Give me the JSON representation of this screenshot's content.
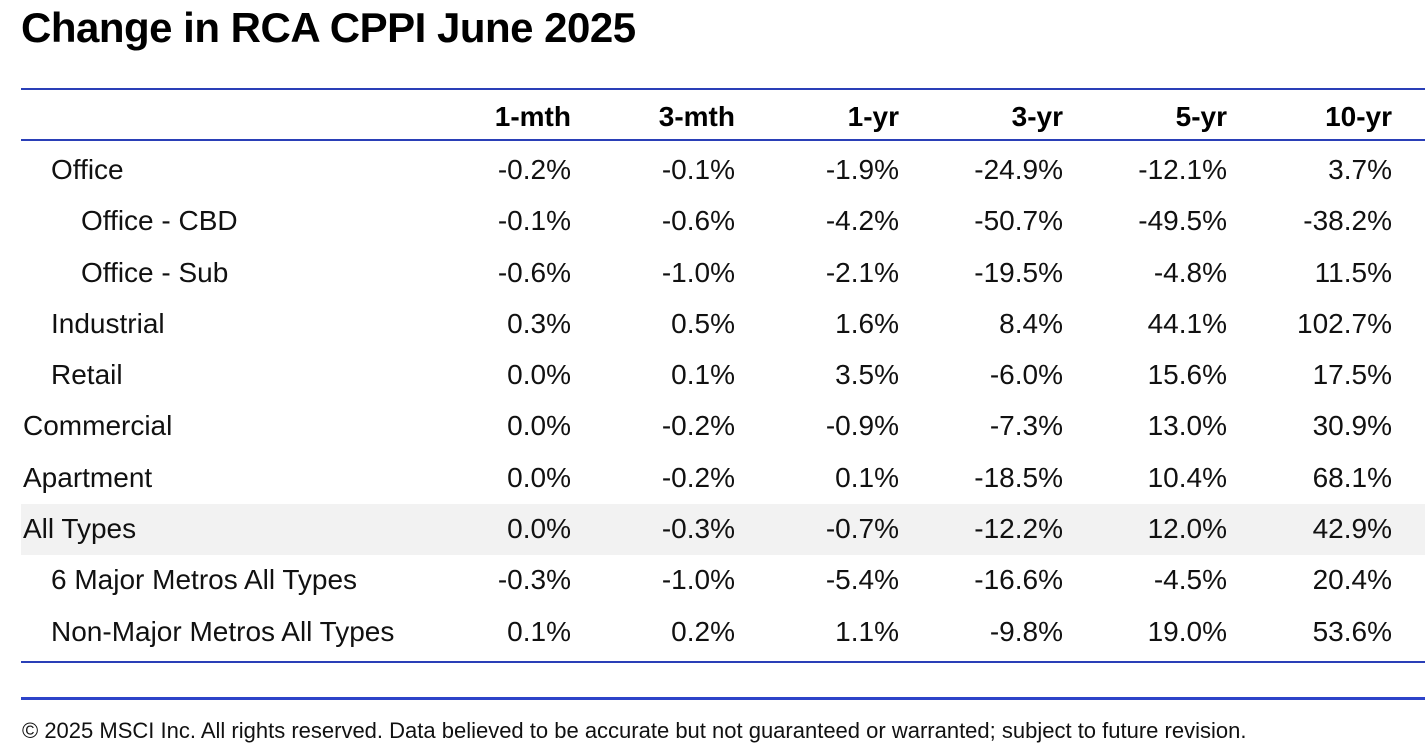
{
  "title": "Change in RCA CPPI June 2025",
  "table": {
    "columns": [
      "1-mth",
      "3-mth",
      "1-yr",
      "3-yr",
      "5-yr",
      "10-yr"
    ],
    "rows": [
      {
        "label": "Office",
        "level": 1,
        "values": [
          "-0.2%",
          "-0.1%",
          "-1.9%",
          "-24.9%",
          "-12.1%",
          "3.7%"
        ]
      },
      {
        "label": "Office - CBD",
        "level": 2,
        "values": [
          "-0.1%",
          "-0.6%",
          "-4.2%",
          "-50.7%",
          "-49.5%",
          "-38.2%"
        ]
      },
      {
        "label": "Office - Sub",
        "level": 2,
        "values": [
          "-0.6%",
          "-1.0%",
          "-2.1%",
          "-19.5%",
          "-4.8%",
          "11.5%"
        ]
      },
      {
        "label": "Industrial",
        "level": 1,
        "values": [
          "0.3%",
          "0.5%",
          "1.6%",
          "8.4%",
          "44.1%",
          "102.7%"
        ]
      },
      {
        "label": "Retail",
        "level": 1,
        "values": [
          "0.0%",
          "0.1%",
          "3.5%",
          "-6.0%",
          "15.6%",
          "17.5%"
        ]
      },
      {
        "label": "Commercial",
        "level": 0,
        "values": [
          "0.0%",
          "-0.2%",
          "-0.9%",
          "-7.3%",
          "13.0%",
          "30.9%"
        ]
      },
      {
        "label": "Apartment",
        "level": 0,
        "values": [
          "0.0%",
          "-0.2%",
          "0.1%",
          "-18.5%",
          "10.4%",
          "68.1%"
        ]
      },
      {
        "label": "All Types",
        "level": 0,
        "highlight": true,
        "values": [
          "0.0%",
          "-0.3%",
          "-0.7%",
          "-12.2%",
          "12.0%",
          "42.9%"
        ]
      },
      {
        "label": "6 Major Metros All Types",
        "level": 1,
        "values": [
          "-0.3%",
          "-1.0%",
          "-5.4%",
          "-16.6%",
          "-4.5%",
          "20.4%"
        ]
      },
      {
        "label": "Non-Major Metros All Types",
        "level": 1,
        "values": [
          "0.1%",
          "0.2%",
          "1.1%",
          "-9.8%",
          "19.0%",
          "53.6%"
        ]
      }
    ]
  },
  "footer": "© 2025 MSCI Inc. All rights reserved. Data believed to be accurate but not guaranteed or warranted; subject to future revision.",
  "colors": {
    "rule": "#2a3fb7",
    "highlight_row": "#f2f2f2"
  }
}
